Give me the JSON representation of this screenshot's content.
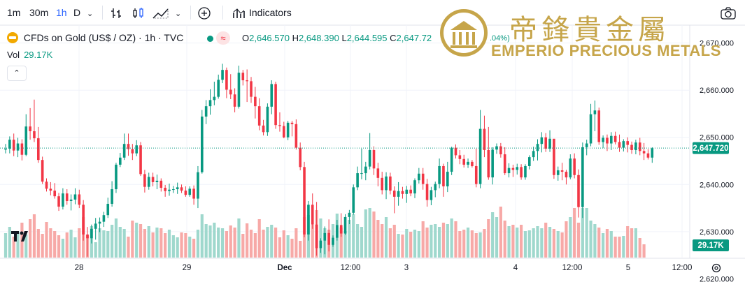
{
  "toolbar": {
    "intervals": [
      "1m",
      "30m",
      "1h",
      "D"
    ],
    "active_interval": "1h",
    "indicators_label": "Indicators"
  },
  "symbol": {
    "name": "CFDs on Gold (US$ / OZ) · 1h · TVC",
    "open_label": "O",
    "open": "2,646.570",
    "high_label": "H",
    "high": "2,648.390",
    "low_label": "L",
    "low": "2,644.595",
    "close_label": "C",
    "close": "2,647.72",
    "change_fragment": ".04%)"
  },
  "volume": {
    "label": "Vol",
    "value": "29.17K"
  },
  "logo": {
    "chinese": "帝鋒貴金屬",
    "english": "EMPERIO PRECIOUS METALS"
  },
  "colors": {
    "up": "#089981",
    "down": "#f23645",
    "up_volume": "#9fd8cd",
    "down_volume": "#f7a9a7",
    "last_price_line": "#089981",
    "gold": "#c6a54a"
  },
  "chart_data": {
    "type": "candlestick",
    "symbol": "CFDs on Gold (US$ / OZ)",
    "interval": "1h",
    "source": "TVC",
    "x_ticks": [
      "28",
      "29",
      "Dec",
      "12:00",
      "3",
      "4",
      "12:00",
      "5",
      "12:00"
    ],
    "y_ticks": [
      "2,630.000",
      "2,640.000",
      "2,650.000",
      "2,660.000",
      "2,670.000"
    ],
    "ylim": [
      2624.5,
      2673.5
    ],
    "last_price": 2647.72,
    "last_price_label": "2,647.720",
    "volume_label": "29.17K",
    "y_partial_tick": "2,620.000",
    "candles": [
      [
        2647.4,
        2648.6,
        2646.6,
        2647.6
      ],
      [
        2647.6,
        2650.2,
        2646.6,
        2649.5
      ],
      [
        2649.5,
        2650.8,
        2646.0,
        2647.2
      ],
      [
        2647.2,
        2649.9,
        2645.8,
        2648.7
      ],
      [
        2648.7,
        2649.6,
        2645.1,
        2646.3
      ],
      [
        2646.3,
        2654.9,
        2646.0,
        2652.3
      ],
      [
        2652.3,
        2656.2,
        2649.5,
        2651.3
      ],
      [
        2651.3,
        2658.0,
        2649.0,
        2649.8
      ],
      [
        2649.8,
        2652.2,
        2644.6,
        2645.2
      ],
      [
        2645.2,
        2645.9,
        2640.1,
        2640.6
      ],
      [
        2640.6,
        2641.3,
        2638.5,
        2639.1
      ],
      [
        2639.1,
        2640.5,
        2637.7,
        2638.7
      ],
      [
        2638.7,
        2640.3,
        2637.0,
        2637.5
      ],
      [
        2637.5,
        2638.2,
        2634.4,
        2635.3
      ],
      [
        2635.3,
        2639.2,
        2634.7,
        2638.1
      ],
      [
        2638.1,
        2639.0,
        2635.7,
        2636.5
      ],
      [
        2636.5,
        2637.9,
        2634.5,
        2636.8
      ],
      [
        2636.8,
        2639.2,
        2635.8,
        2637.9
      ],
      [
        2637.9,
        2638.9,
        2635.0,
        2635.7
      ],
      [
        2635.7,
        2636.7,
        2628.1,
        2629.4
      ],
      [
        2629.4,
        2631.0,
        2624.7,
        2628.6
      ],
      [
        2628.6,
        2631.5,
        2627.5,
        2630.6
      ],
      [
        2630.6,
        2632.9,
        2628.3,
        2631.7
      ],
      [
        2631.7,
        2633.0,
        2629.9,
        2632.1
      ],
      [
        2632.1,
        2634.2,
        2631.0,
        2633.5
      ],
      [
        2633.5,
        2637.2,
        2632.9,
        2635.9
      ],
      [
        2635.9,
        2640.7,
        2635.3,
        2639.0
      ],
      [
        2639.0,
        2644.6,
        2638.2,
        2644.2
      ],
      [
        2644.2,
        2646.7,
        2643.7,
        2645.7
      ],
      [
        2645.7,
        2650.8,
        2645.2,
        2648.6
      ],
      [
        2648.6,
        2650.8,
        2646.1,
        2647.5
      ],
      [
        2647.5,
        2648.6,
        2645.2,
        2646.6
      ],
      [
        2646.6,
        2649.4,
        2646.0,
        2648.3
      ],
      [
        2648.3,
        2649.0,
        2641.8,
        2642.2
      ],
      [
        2642.2,
        2643.1,
        2638.3,
        2639.5
      ],
      [
        2639.5,
        2642.5,
        2638.9,
        2641.6
      ],
      [
        2641.6,
        2642.5,
        2639.6,
        2640.5
      ],
      [
        2640.5,
        2642.1,
        2639.0,
        2640.8
      ],
      [
        2640.8,
        2641.3,
        2638.5,
        2639.3
      ],
      [
        2639.3,
        2639.9,
        2637.4,
        2638.6
      ],
      [
        2638.6,
        2640.2,
        2637.6,
        2638.9
      ],
      [
        2638.9,
        2639.7,
        2638.2,
        2639.0
      ],
      [
        2639.0,
        2640.4,
        2638.0,
        2639.4
      ],
      [
        2639.4,
        2640.0,
        2638.2,
        2638.7
      ],
      [
        2638.7,
        2639.6,
        2637.4,
        2637.8
      ],
      [
        2637.8,
        2639.6,
        2637.4,
        2639.1
      ],
      [
        2639.1,
        2639.8,
        2635.7,
        2637.0
      ],
      [
        2637.0,
        2643.9,
        2635.0,
        2642.6
      ],
      [
        2642.6,
        2655.8,
        2642.3,
        2654.4
      ],
      [
        2654.4,
        2657.9,
        2652.8,
        2656.6
      ],
      [
        2656.6,
        2660.2,
        2654.8,
        2657.9
      ],
      [
        2657.9,
        2661.8,
        2656.8,
        2658.6
      ],
      [
        2658.6,
        2663.3,
        2658.2,
        2662.2
      ],
      [
        2662.2,
        2665.6,
        2661.5,
        2664.3
      ],
      [
        2664.3,
        2664.8,
        2658.3,
        2660.1
      ],
      [
        2660.1,
        2663.4,
        2658.1,
        2659.1
      ],
      [
        2659.1,
        2660.4,
        2655.3,
        2656.5
      ],
      [
        2656.5,
        2665.2,
        2656.1,
        2663.7
      ],
      [
        2663.7,
        2664.3,
        2661.0,
        2662.1
      ],
      [
        2662.1,
        2664.4,
        2657.5,
        2661.9
      ],
      [
        2661.9,
        2662.8,
        2657.3,
        2658.6
      ],
      [
        2658.6,
        2660.7,
        2654.0,
        2656.6
      ],
      [
        2656.6,
        2658.3,
        2651.5,
        2652.5
      ],
      [
        2652.5,
        2653.7,
        2650.4,
        2651.1
      ],
      [
        2651.1,
        2657.2,
        2650.3,
        2656.5
      ],
      [
        2656.5,
        2662.1,
        2654.9,
        2661.3
      ],
      [
        2661.3,
        2661.8,
        2651.8,
        2652.6
      ],
      [
        2652.6,
        2655.3,
        2651.2,
        2652.4
      ],
      [
        2652.4,
        2653.3,
        2649.8,
        2650.0
      ],
      [
        2650.0,
        2653.5,
        2649.4,
        2653.1
      ],
      [
        2653.1,
        2653.5,
        2650.2,
        2652.8
      ],
      [
        2652.8,
        2653.8,
        2647.4,
        2647.8
      ],
      [
        2647.8,
        2648.9,
        2643.0,
        2643.7
      ],
      [
        2643.7,
        2644.8,
        2628.8,
        2629.4
      ],
      [
        2629.4,
        2636.5,
        2628.1,
        2635.7
      ],
      [
        2635.7,
        2638.1,
        2630.6,
        2631.5
      ],
      [
        2631.5,
        2636.3,
        2624.9,
        2626.5
      ],
      [
        2626.5,
        2628.6,
        2625.5,
        2628.1
      ],
      [
        2628.1,
        2631.1,
        2625.2,
        2629.7
      ],
      [
        2629.7,
        2632.6,
        2625.8,
        2627.2
      ],
      [
        2627.2,
        2629.2,
        2626.8,
        2628.7
      ],
      [
        2628.7,
        2632.5,
        2628.1,
        2631.4
      ],
      [
        2631.4,
        2633.9,
        2628.9,
        2629.6
      ],
      [
        2629.6,
        2633.7,
        2629.3,
        2633.1
      ],
      [
        2633.1,
        2634.6,
        2631.6,
        2634.0
      ],
      [
        2634.0,
        2640.0,
        2633.6,
        2639.4
      ],
      [
        2639.4,
        2643.8,
        2638.8,
        2642.4
      ],
      [
        2642.4,
        2647.6,
        2641.1,
        2642.4
      ],
      [
        2642.4,
        2644.8,
        2640.9,
        2643.8
      ],
      [
        2643.8,
        2650.9,
        2643.2,
        2647.3
      ],
      [
        2647.3,
        2648.1,
        2642.0,
        2643.4
      ],
      [
        2643.4,
        2644.6,
        2639.6,
        2641.4
      ],
      [
        2641.4,
        2642.7,
        2637.9,
        2638.8
      ],
      [
        2638.8,
        2642.6,
        2636.9,
        2641.7
      ],
      [
        2641.7,
        2642.5,
        2637.9,
        2638.7
      ],
      [
        2638.7,
        2639.6,
        2633.9,
        2637.4
      ],
      [
        2637.4,
        2640.5,
        2635.5,
        2638.6
      ],
      [
        2638.6,
        2639.5,
        2637.0,
        2638.0
      ],
      [
        2638.0,
        2639.7,
        2636.1,
        2638.9
      ],
      [
        2638.9,
        2639.8,
        2637.5,
        2638.1
      ],
      [
        2638.1,
        2641.3,
        2637.1,
        2640.9
      ],
      [
        2640.9,
        2643.5,
        2640.2,
        2642.3
      ],
      [
        2642.3,
        2643.5,
        2638.9,
        2640.1
      ],
      [
        2640.1,
        2641.2,
        2635.3,
        2636.7
      ],
      [
        2636.7,
        2639.5,
        2635.6,
        2638.8
      ],
      [
        2638.8,
        2640.6,
        2637.3,
        2640.1
      ],
      [
        2640.1,
        2645.5,
        2639.2,
        2643.9
      ],
      [
        2643.9,
        2644.4,
        2637.4,
        2639.6
      ],
      [
        2639.6,
        2644.8,
        2638.4,
        2642.7
      ],
      [
        2642.7,
        2648.0,
        2642.0,
        2647.8
      ],
      [
        2647.8,
        2648.5,
        2645.5,
        2646.2
      ],
      [
        2646.2,
        2647.3,
        2644.3,
        2645.4
      ],
      [
        2645.4,
        2646.3,
        2643.6,
        2644.2
      ],
      [
        2644.2,
        2645.5,
        2643.5,
        2644.8
      ],
      [
        2644.8,
        2645.2,
        2643.6,
        2643.9
      ],
      [
        2643.9,
        2647.6,
        2639.4,
        2640.1
      ],
      [
        2640.1,
        2655.8,
        2639.2,
        2651.8
      ],
      [
        2651.8,
        2654.6,
        2645.8,
        2647.3
      ],
      [
        2647.3,
        2652.2,
        2641.0,
        2641.5
      ],
      [
        2641.5,
        2647.9,
        2640.0,
        2647.4
      ],
      [
        2647.4,
        2648.7,
        2646.5,
        2648.1
      ],
      [
        2648.1,
        2648.8,
        2645.7,
        2646.4
      ],
      [
        2646.4,
        2647.9,
        2642.0,
        2642.4
      ],
      [
        2642.4,
        2644.5,
        2641.5,
        2643.5
      ],
      [
        2643.5,
        2644.2,
        2641.6,
        2643.1
      ],
      [
        2643.1,
        2644.4,
        2642.1,
        2643.7
      ],
      [
        2643.7,
        2644.3,
        2641.0,
        2641.5
      ],
      [
        2641.5,
        2644.3,
        2641.0,
        2643.9
      ],
      [
        2643.9,
        2646.2,
        2643.2,
        2645.8
      ],
      [
        2645.8,
        2648.0,
        2645.0,
        2647.1
      ],
      [
        2647.1,
        2649.6,
        2645.1,
        2648.6
      ],
      [
        2648.6,
        2651.1,
        2646.8,
        2650.0
      ],
      [
        2650.0,
        2650.9,
        2646.9,
        2647.6
      ],
      [
        2647.6,
        2651.5,
        2646.9,
        2649.7
      ],
      [
        2649.7,
        2649.4,
        2641.2,
        2642.0
      ],
      [
        2642.0,
        2643.8,
        2640.8,
        2643.0
      ],
      [
        2643.0,
        2644.6,
        2640.9,
        2642.7
      ],
      [
        2642.7,
        2643.1,
        2640.0,
        2641.5
      ],
      [
        2641.5,
        2646.4,
        2641.1,
        2645.5
      ],
      [
        2645.5,
        2646.6,
        2641.3,
        2642.0
      ],
      [
        2642.0,
        2643.2,
        2633.0,
        2635.2
      ],
      [
        2635.2,
        2648.9,
        2632.9,
        2647.9
      ],
      [
        2647.9,
        2649.5,
        2646.2,
        2648.7
      ],
      [
        2648.7,
        2657.1,
        2648.1,
        2654.9
      ],
      [
        2654.9,
        2657.8,
        2651.3,
        2655.7
      ],
      [
        2655.7,
        2656.3,
        2648.4,
        2649.0
      ],
      [
        2649.0,
        2650.4,
        2647.7,
        2649.9
      ],
      [
        2649.9,
        2650.6,
        2647.1,
        2648.7
      ],
      [
        2648.7,
        2651.1,
        2647.3,
        2650.3
      ],
      [
        2650.3,
        2651.2,
        2648.5,
        2649.0
      ],
      [
        2649.0,
        2650.6,
        2646.9,
        2647.8
      ],
      [
        2647.8,
        2649.6,
        2647.0,
        2649.2
      ],
      [
        2649.2,
        2650.0,
        2646.8,
        2648.4
      ],
      [
        2648.4,
        2649.1,
        2646.5,
        2647.3
      ],
      [
        2647.3,
        2649.5,
        2646.4,
        2648.9
      ],
      [
        2648.9,
        2649.9,
        2646.2,
        2647.1
      ],
      [
        2647.1,
        2648.8,
        2645.2,
        2646.6
      ],
      [
        2646.6,
        2647.5,
        2645.3,
        2645.7
      ],
      [
        2645.7,
        2647.9,
        2644.6,
        2647.7
      ]
    ],
    "volume": [
      0.35,
      0.44,
      0.3,
      0.38,
      0.5,
      0.33,
      0.55,
      0.62,
      0.41,
      0.34,
      0.51,
      0.42,
      0.38,
      0.32,
      0.27,
      0.36,
      0.4,
      0.29,
      0.42,
      0.58,
      0.32,
      0.45,
      0.22,
      0.42,
      0.39,
      0.38,
      0.47,
      0.56,
      0.44,
      0.41,
      0.3,
      0.53,
      0.5,
      0.48,
      0.41,
      0.45,
      0.36,
      0.43,
      0.42,
      0.35,
      0.4,
      0.32,
      0.29,
      0.36,
      0.35,
      0.3,
      0.27,
      0.4,
      0.62,
      0.48,
      0.46,
      0.5,
      0.43,
      0.42,
      0.38,
      0.46,
      0.43,
      0.56,
      0.34,
      0.49,
      0.4,
      0.35,
      0.55,
      0.4,
      0.44,
      0.47,
      0.43,
      0.29,
      0.39,
      0.32,
      0.27,
      0.42,
      0.24,
      0.58,
      0.61,
      0.47,
      0.68,
      0.56,
      0.42,
      0.4,
      0.48,
      0.63,
      0.43,
      0.38,
      0.54,
      0.62,
      0.48,
      0.44,
      0.69,
      0.71,
      0.66,
      0.54,
      0.48,
      0.58,
      0.42,
      0.47,
      0.34,
      0.33,
      0.41,
      0.37,
      0.4,
      0.38,
      0.52,
      0.43,
      0.47,
      0.48,
      0.44,
      0.5,
      0.48,
      0.56,
      0.52,
      0.38,
      0.4,
      0.43,
      0.39,
      0.35,
      0.36,
      0.41,
      0.55,
      0.65,
      0.58,
      0.73,
      0.53,
      0.45,
      0.47,
      0.43,
      0.47,
      0.38,
      0.39,
      0.42,
      0.45,
      0.42,
      0.5,
      0.44,
      0.41,
      0.38,
      0.36,
      0.52,
      0.58,
      0.71,
      0.5,
      0.71,
      0.71,
      0.53,
      0.48,
      0.43,
      0.35,
      0.41,
      0.38,
      0.3,
      0.3,
      0.31,
      0.45,
      0.42,
      0.42,
      0.28,
      0.19
    ]
  }
}
